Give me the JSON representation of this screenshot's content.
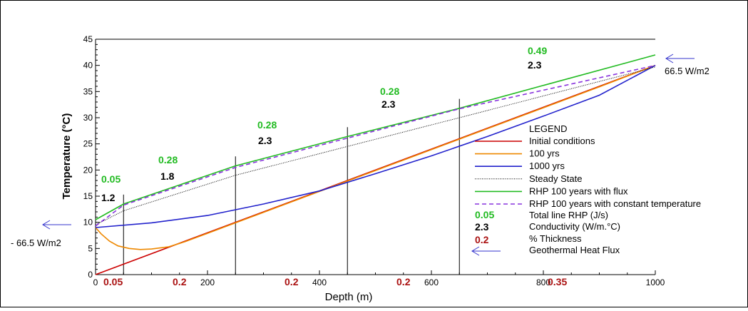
{
  "chart_data": {
    "type": "line",
    "xlabel": "Depth (m)",
    "ylabel": "Temperature (°C)",
    "xlim": [
      0,
      1000
    ],
    "ylim": [
      0,
      45
    ],
    "xticks": [
      "0",
      "200",
      "400",
      "600",
      "800",
      "1000"
    ],
    "yticks": [
      "0",
      "5",
      "10",
      "15",
      "20",
      "25",
      "30",
      "35",
      "40",
      "45"
    ],
    "layer_boundaries": [
      50,
      250,
      450,
      650
    ],
    "series": [
      {
        "name": "Initial conditions",
        "color": "#cc0000",
        "dash": "none",
        "x": [
          0,
          1000
        ],
        "y": [
          0,
          40
        ]
      },
      {
        "name": "100 yrs",
        "color": "#ee8800",
        "dash": "none",
        "x": [
          0,
          10,
          25,
          40,
          60,
          80,
          100,
          130,
          160,
          200,
          250,
          300,
          400,
          500,
          600,
          700,
          800,
          900,
          1000
        ],
        "y": [
          9.0,
          7.8,
          6.4,
          5.5,
          5.0,
          4.8,
          4.9,
          5.3,
          6.3,
          7.9,
          9.9,
          11.9,
          15.9,
          19.9,
          23.9,
          27.9,
          31.9,
          35.9,
          40.0
        ]
      },
      {
        "name": "1000 yrs",
        "color": "#2222cc",
        "dash": "none",
        "x": [
          0,
          100,
          200,
          300,
          400,
          500,
          600,
          700,
          800,
          900,
          1000
        ],
        "y": [
          9.0,
          9.9,
          11.3,
          13.5,
          16.0,
          19.3,
          22.7,
          26.4,
          30.3,
          34.3,
          40.0
        ]
      },
      {
        "name": "Steady State",
        "color": "#000000",
        "dash": "dotted",
        "x": [
          0,
          50,
          250,
          450,
          650,
          1000
        ],
        "y": [
          9.5,
          12.2,
          19.0,
          24.5,
          30.0,
          39.7
        ]
      },
      {
        "name": "RHP 100 years with flux",
        "color": "#22bb22",
        "dash": "none",
        "x": [
          0,
          50,
          250,
          450,
          650,
          1000
        ],
        "y": [
          10.5,
          13.5,
          20.8,
          26.4,
          31.8,
          42.0
        ]
      },
      {
        "name": "RHP 100 years with constant temperature",
        "color": "#8833dd",
        "dash": "dashed",
        "x": [
          0,
          50,
          250,
          450,
          650,
          1000
        ],
        "y": [
          9.3,
          13.3,
          20.5,
          26.1,
          31.7,
          40.0
        ]
      }
    ],
    "layer_labels": [
      {
        "rhp": "0.05",
        "conductivity": "1.2",
        "thickness": "0.05"
      },
      {
        "rhp": "0.28",
        "conductivity": "1.8",
        "thickness": "0.2"
      },
      {
        "rhp": "0.28",
        "conductivity": "2.3",
        "thickness": "0.2"
      },
      {
        "rhp": "0.28",
        "conductivity": "2.3",
        "thickness": "0.2"
      },
      {
        "rhp": "0.49",
        "conductivity": "2.3",
        "thickness": "0.35"
      }
    ],
    "flux_left": "- 66.5 W/m2",
    "flux_right": "66.5 W/m2",
    "legend": {
      "title": "LEGEND",
      "entries": [
        "Initial conditions",
        "100 yrs",
        "1000 yrs",
        "Steady State",
        "RHP 100 years with flux",
        "RHP 100 years with constant temperature"
      ],
      "key_rhp_sample": "0.05",
      "key_rhp_text": "Total line RHP (J/s)",
      "key_cond_sample": "2.3",
      "key_cond_text": "Conductivity (W/m.°C)",
      "key_thick_sample": "0.2",
      "key_thick_text": "% Thickness",
      "key_flux_text": "Geothermal Heat Flux"
    },
    "colors": {
      "rhp_label": "#22bb22",
      "conductivity_label": "#000000",
      "thickness_label": "#aa1111",
      "flux_arrow": "#3333cc"
    }
  }
}
